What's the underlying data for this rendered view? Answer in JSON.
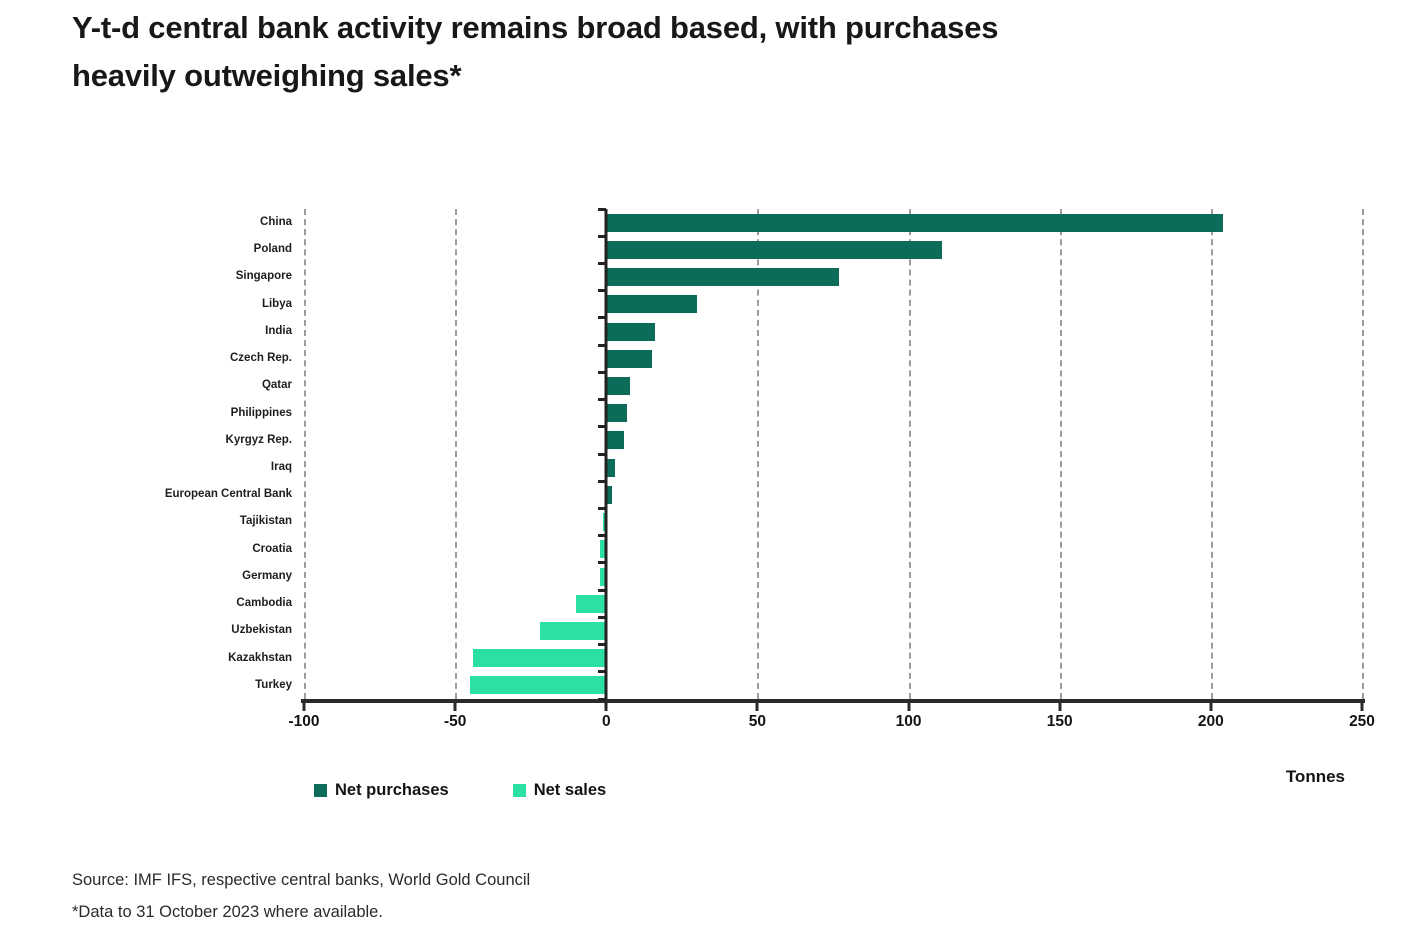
{
  "header": {
    "title_line1": "Y-t-d central bank activity remains broad based, with purchases",
    "title_line2": "heavily outweighing sales*"
  },
  "chart_data": {
    "type": "bar",
    "orientation": "horizontal",
    "title": "Y-t-d central bank activity remains broad based, with purchases heavily outweighing sales*",
    "xlabel": "Tonnes",
    "xlim": [
      -100,
      250
    ],
    "xticks": [
      -100,
      -50,
      0,
      50,
      100,
      150,
      200,
      250
    ],
    "grid": "dashed vertical gridlines at every tick except zero",
    "legend_position": "bottom-left",
    "categories": [
      "China",
      "Poland",
      "Singapore",
      "Libya",
      "India",
      "Czech Rep.",
      "Qatar",
      "Philippines",
      "Kyrgyz Rep.",
      "Iraq",
      "European Central Bank",
      "Tajikistan",
      "Croatia",
      "Germany",
      "Cambodia",
      "Uzbekistan",
      "Kazakhstan",
      "Turkey"
    ],
    "values": [
      204,
      111,
      77,
      30,
      16,
      15,
      8,
      7,
      6,
      3,
      2,
      -1,
      -2,
      -2,
      -10,
      -22,
      -44,
      -45
    ],
    "series_rule": "positive values = Net purchases (dark teal), negative values = Net sales (mint)",
    "legend": [
      {
        "label": "Net purchases",
        "color": "#0d6b59"
      },
      {
        "label": "Net sales",
        "color": "#2ce0a1"
      }
    ]
  },
  "footer": {
    "source": "Source: IMF IFS, respective central banks, World Gold Council",
    "note": "*Data to 31 October 2023 where available."
  },
  "colors": {
    "net_purchases": "#0d6b59",
    "net_sales": "#2ce0a1",
    "axis": "#222222",
    "gridline": "#9c9c9c",
    "text": "#181818",
    "background": "#ffffff"
  }
}
